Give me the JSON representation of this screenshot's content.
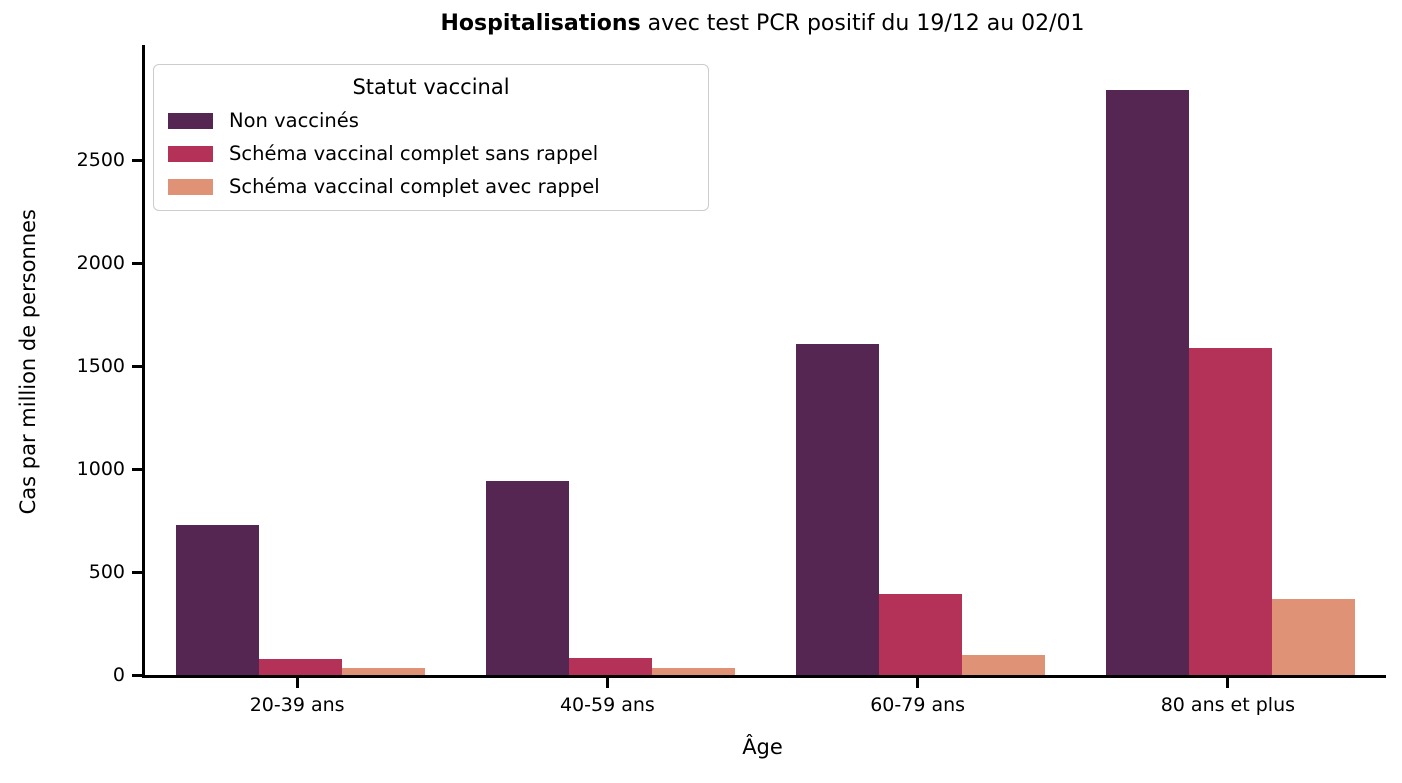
{
  "title": {
    "bold": "Hospitalisations",
    "rest": " avec test PCR positif du 19/12 au 02/01"
  },
  "chart_data": {
    "type": "bar",
    "grouped": true,
    "title": "Hospitalisations avec test PCR positif du 19/12 au 02/01",
    "xlabel": "Âge",
    "ylabel": "Cas par million de personnes",
    "categories": [
      "20-39 ans",
      "40-59 ans",
      "60-79 ans",
      "80 ans et plus"
    ],
    "series": [
      {
        "name": "Non vaccinés",
        "color": "#562652",
        "values": [
          730,
          940,
          1610,
          2840
        ]
      },
      {
        "name": "Schéma vaccinal complet sans rappel",
        "color": "#b43258",
        "values": [
          80,
          85,
          395,
          1590
        ]
      },
      {
        "name": "Schéma vaccinal complet avec rappel",
        "color": "#e09276",
        "values": [
          33,
          35,
          95,
          370
        ]
      }
    ],
    "yticks": [
      0,
      500,
      1000,
      1500,
      2000,
      2500
    ],
    "ylim": [
      0,
      3060
    ],
    "grid": false,
    "legend": {
      "title": "Statut vaccinal",
      "position": "upper left"
    },
    "background": "#ffffff",
    "spine_color": "#000000"
  }
}
